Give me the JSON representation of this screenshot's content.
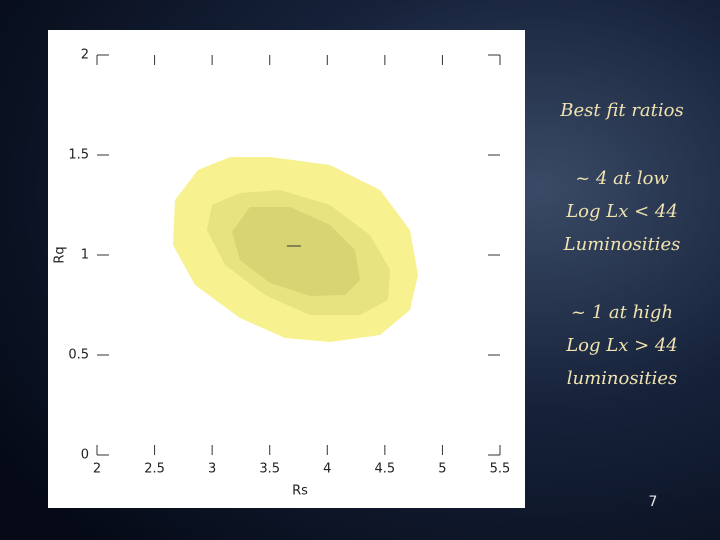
{
  "chart_data": {
    "type": "contour",
    "xlabel": "Rs",
    "ylabel": "Rq",
    "xlim": [
      2,
      5.5
    ],
    "xticks": [
      2,
      2.5,
      3,
      3.5,
      4,
      4.5,
      5,
      5.5
    ],
    "ylim": [
      0,
      2
    ],
    "yticks": [
      0,
      0.5,
      1,
      1.5,
      2
    ],
    "series": [
      {
        "color": "#f7f18f",
        "x": [
          3.155,
          3.503,
          4.024,
          4.458,
          4.718,
          4.788,
          4.718,
          4.458,
          4.024,
          3.633,
          3.242,
          2.851,
          2.66,
          2.677,
          2.877
        ],
        "values": [
          1.49,
          1.49,
          1.45,
          1.325,
          1.125,
          0.9,
          0.725,
          0.6,
          0.565,
          0.585,
          0.685,
          0.85,
          1.05,
          1.275,
          1.425
        ]
      },
      {
        "color": "#e7e380",
        "x": [
          3.242,
          3.589,
          4.024,
          4.371,
          4.545,
          4.527,
          4.284,
          3.85,
          3.459,
          3.112,
          2.955,
          2.999
        ],
        "values": [
          1.31,
          1.325,
          1.25,
          1.1,
          0.925,
          0.775,
          0.7,
          0.7,
          0.8,
          0.95,
          1.125,
          1.25
        ]
      },
      {
        "color": "#d8d474",
        "x": [
          3.329,
          3.676,
          4.024,
          4.241,
          4.284,
          4.154,
          3.85,
          3.503,
          3.242,
          3.172
        ],
        "values": [
          1.24,
          1.24,
          1.15,
          1.025,
          0.875,
          0.8,
          0.795,
          0.86,
          0.975,
          1.115
        ]
      }
    ],
    "best_fit": {
      "x": 3.71,
      "y": 1.045
    }
  },
  "slide": {
    "lines": [
      "Best fit ratios",
      "~ 4 at low",
      "Log Lx < 44",
      "Luminosities",
      "~ 1 at high",
      "Log Lx > 44",
      "luminosities"
    ],
    "page_number": "7"
  }
}
